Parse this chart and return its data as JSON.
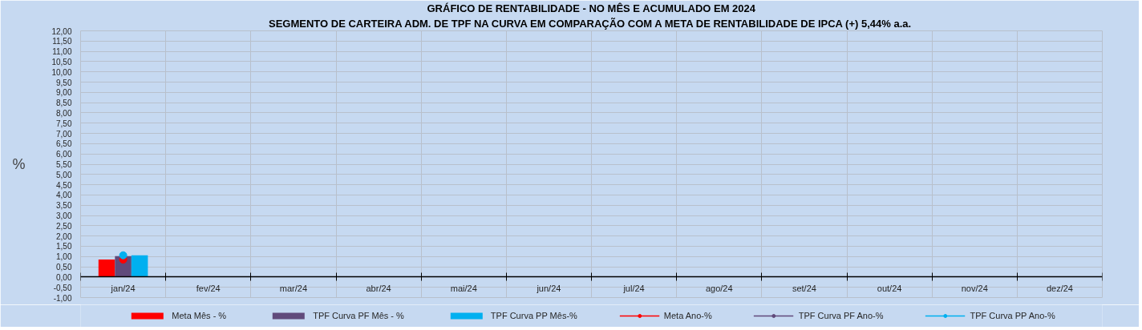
{
  "chart_data": {
    "type": "bar",
    "title": "GRÁFICO DE RENTABILIDADE - NO MÊS E ACUMULADO EM 2024",
    "subtitle": "SEGMENTO DE CARTEIRA ADM. DE TPF NA CURVA EM COMPARAÇÃO COM A META DE RENTABILIDADE DE IPCA (+) 5,44% a.a.",
    "ylabel": "%",
    "categories": [
      "jan/24",
      "fev/24",
      "mar/24",
      "abr/24",
      "mai/24",
      "jun/24",
      "jul/24",
      "ago/24",
      "set/24",
      "out/24",
      "nov/24",
      "dez/24"
    ],
    "series": [
      {
        "name": "Meta Mês - %",
        "color": "#ff0000",
        "values": [
          0.85,
          null,
          null,
          null,
          null,
          null,
          null,
          null,
          null,
          null,
          null,
          null
        ]
      },
      {
        "name": "TPF Curva PF Mês - %",
        "color": "#604a7b",
        "values": [
          1.02,
          null,
          null,
          null,
          null,
          null,
          null,
          null,
          null,
          null,
          null,
          null
        ]
      },
      {
        "name": "TPF Curva PP Mês-%",
        "color": "#00b0f0",
        "values": [
          1.06,
          null,
          null,
          null,
          null,
          null,
          null,
          null,
          null,
          null,
          null,
          null
        ]
      },
      {
        "name": "Meta Ano-%",
        "type": "line",
        "marker": "circle",
        "color": "#ff0000",
        "values": [
          0.85,
          null,
          null,
          null,
          null,
          null,
          null,
          null,
          null,
          null,
          null,
          null
        ]
      },
      {
        "name": "TPF Curva PF Ano-%",
        "type": "line",
        "marker": "circle",
        "color": "#604a7b",
        "values": [
          null,
          null,
          null,
          null,
          null,
          null,
          null,
          null,
          null,
          null,
          null,
          null
        ]
      },
      {
        "name": "TPF Curva PP Ano-%",
        "type": "line",
        "marker": "circle",
        "color": "#00b0f0",
        "values": [
          1.06,
          null,
          null,
          null,
          null,
          null,
          null,
          null,
          null,
          null,
          null,
          null
        ]
      }
    ],
    "ylim": [
      -1,
      12
    ],
    "yticks": [
      {
        "value": -1,
        "label": "-1,00"
      },
      {
        "value": -0.5,
        "label": "-0,50"
      },
      {
        "value": 0,
        "label": "0,00"
      },
      {
        "value": 0.5,
        "label": "0,50"
      },
      {
        "value": 1,
        "label": "1,00"
      },
      {
        "value": 1.5,
        "label": "1,50"
      },
      {
        "value": 2,
        "label": "2,00"
      },
      {
        "value": 2.5,
        "label": "2,50"
      },
      {
        "value": 3,
        "label": "3,00"
      },
      {
        "value": 3.5,
        "label": "3,50"
      },
      {
        "value": 4,
        "label": "4,00"
      },
      {
        "value": 4.5,
        "label": "4,50"
      },
      {
        "value": 5,
        "label": "5,00"
      },
      {
        "value": 5.5,
        "label": "5,50"
      },
      {
        "value": 6,
        "label": "6,00"
      },
      {
        "value": 6.5,
        "label": "6,50"
      },
      {
        "value": 7,
        "label": "7,00"
      },
      {
        "value": 7.5,
        "label": "7,50"
      },
      {
        "value": 8,
        "label": "8,00"
      },
      {
        "value": 8.5,
        "label": "8,50"
      },
      {
        "value": 9,
        "label": "9,00"
      },
      {
        "value": 9.5,
        "label": "9,50"
      },
      {
        "value": 10,
        "label": "10,00"
      },
      {
        "value": 10.5,
        "label": "10,50"
      },
      {
        "value": 11,
        "label": "11,00"
      },
      {
        "value": 11.5,
        "label": "11,50"
      },
      {
        "value": 12,
        "label": "12,00"
      }
    ],
    "grid": true,
    "legend": "bottom"
  }
}
